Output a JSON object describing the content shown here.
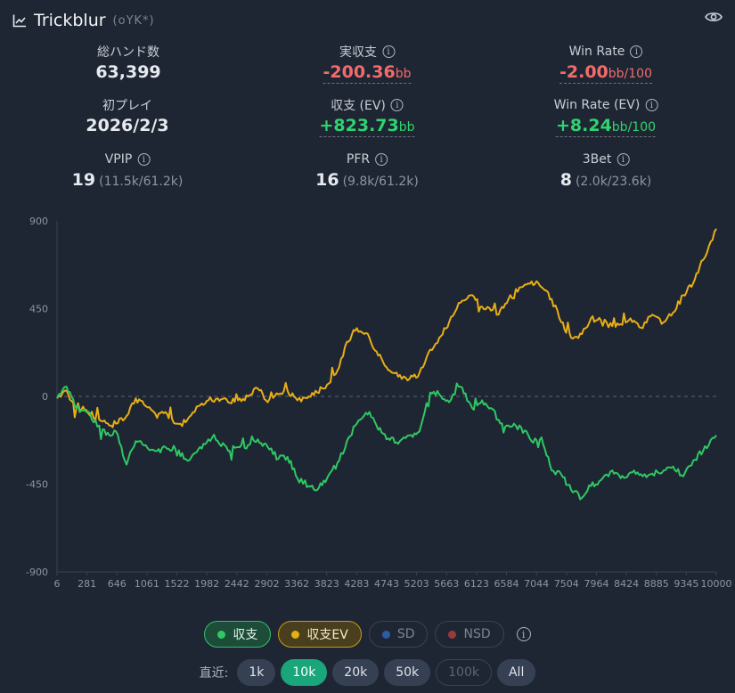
{
  "header": {
    "title": "Trickblur",
    "subtitle": "(oYK*)",
    "chart_icon": "line-chart-icon",
    "eye_icon": "eye-icon"
  },
  "stats": {
    "total_hands": {
      "label": "総ハンド数",
      "value": "63,399"
    },
    "actual_profit": {
      "label": "実収支",
      "value": "-200.36",
      "unit": "bb"
    },
    "win_rate": {
      "label": "Win Rate",
      "value": "-2.00",
      "unit": "bb/100"
    },
    "first_play": {
      "label": "初プレイ",
      "value": "2026/2/3"
    },
    "profit_ev": {
      "label": "収支 (EV)",
      "value": "+823.73",
      "unit": "bb"
    },
    "win_rate_ev": {
      "label": "Win Rate (EV)",
      "value": "+8.24",
      "unit": "bb/100"
    },
    "vpip": {
      "label": "VPIP",
      "value": "19",
      "detail": "(11.5k/61.2k)"
    },
    "pfr": {
      "label": "PFR",
      "value": "16",
      "detail": "(9.8k/61.2k)"
    },
    "threebet": {
      "label": "3Bet",
      "value": "8",
      "detail": "(2.0k/23.6k)"
    }
  },
  "colors": {
    "profit": "#2fc864",
    "ev": "#e8ae16",
    "negative": "#f26b6b",
    "positive": "#2fd36f",
    "active": "#1aa57a"
  },
  "chart_data": {
    "type": "line",
    "xlim": [
      6,
      10000
    ],
    "ylim": [
      -900,
      900
    ],
    "x_ticks": [
      "6",
      "281",
      "646",
      "1061",
      "1522",
      "1982",
      "2442",
      "2902",
      "3362",
      "3823",
      "4283",
      "4743",
      "5203",
      "5663",
      "6123",
      "6584",
      "7044",
      "7504",
      "7964",
      "8424",
      "8885",
      "9345",
      "10000"
    ],
    "y_ticks": [
      "900",
      "450",
      "0",
      "-450",
      "-900"
    ],
    "grid": "zero-line only",
    "series": [
      {
        "name": "収支",
        "x": [
          6,
          150,
          300,
          450,
          646,
          800,
          900,
          1061,
          1200,
          1350,
          1522,
          1650,
          1800,
          1982,
          2150,
          2300,
          2442,
          2600,
          2750,
          2902,
          3050,
          3200,
          3362,
          3500,
          3650,
          3823,
          3950,
          4100,
          4283,
          4400,
          4550,
          4743,
          4850,
          5000,
          5203,
          5350,
          5500,
          5663,
          5800,
          5950,
          6123,
          6300,
          6450,
          6584,
          6700,
          6850,
          7044,
          7200,
          7350,
          7504,
          7650,
          7800,
          7964,
          8100,
          8250,
          8424,
          8550,
          8700,
          8885,
          9000,
          9200,
          9345,
          9500,
          9650,
          9800,
          10000
        ],
        "y": [
          -10,
          50,
          -60,
          -80,
          -150,
          -200,
          -180,
          -350,
          -230,
          -250,
          -280,
          -260,
          -270,
          -330,
          -270,
          -220,
          -230,
          -280,
          -260,
          -250,
          -220,
          -260,
          -320,
          -310,
          -420,
          -460,
          -480,
          -420,
          -330,
          -230,
          -140,
          -80,
          -150,
          -220,
          -230,
          -200,
          -180,
          20,
          10,
          -30,
          50,
          -60,
          -20,
          -60,
          -120,
          -150,
          -160,
          -230,
          -210,
          -380,
          -400,
          -480,
          -520,
          -460,
          -430,
          -380,
          -420,
          -390,
          -410,
          -400,
          -380,
          -360,
          -410,
          -330,
          -280,
          -200
        ]
      },
      {
        "name": "収支EV",
        "x": [
          6,
          150,
          300,
          450,
          646,
          800,
          900,
          1061,
          1200,
          1350,
          1522,
          1650,
          1800,
          1982,
          2150,
          2300,
          2442,
          2600,
          2750,
          2902,
          3050,
          3200,
          3362,
          3500,
          3650,
          3823,
          3950,
          4100,
          4283,
          4400,
          4550,
          4743,
          4850,
          5000,
          5203,
          5350,
          5500,
          5663,
          5800,
          5950,
          6123,
          6300,
          6450,
          6584,
          6700,
          6850,
          7044,
          7200,
          7350,
          7504,
          7650,
          7800,
          7964,
          8100,
          8250,
          8424,
          8550,
          8700,
          8885,
          9000,
          9200,
          9345,
          9500,
          9650,
          9800,
          10000
        ],
        "y": [
          -10,
          30,
          -60,
          -70,
          -120,
          -150,
          -140,
          -100,
          -10,
          -50,
          -110,
          -80,
          -140,
          -120,
          -50,
          -20,
          -10,
          -30,
          -20,
          0,
          40,
          -30,
          10,
          30,
          -20,
          0,
          20,
          60,
          150,
          280,
          350,
          300,
          230,
          150,
          110,
          90,
          120,
          240,
          300,
          380,
          480,
          520,
          460,
          440,
          420,
          500,
          560,
          590,
          560,
          500,
          380,
          300,
          320,
          400,
          390,
          360,
          370,
          400,
          350,
          410,
          380,
          430,
          520,
          580,
          700,
          860
        ]
      }
    ]
  },
  "legend": {
    "items": [
      {
        "label": "収支",
        "state": "on"
      },
      {
        "label": "収支EV",
        "state": "on"
      },
      {
        "label": "SD",
        "state": "off"
      },
      {
        "label": "NSD",
        "state": "off"
      }
    ]
  },
  "range": {
    "label": "直近:",
    "buttons": [
      {
        "label": "1k",
        "state": "normal"
      },
      {
        "label": "10k",
        "state": "active"
      },
      {
        "label": "20k",
        "state": "normal"
      },
      {
        "label": "50k",
        "state": "normal"
      },
      {
        "label": "100k",
        "state": "disabled"
      },
      {
        "label": "All",
        "state": "normal"
      }
    ]
  }
}
